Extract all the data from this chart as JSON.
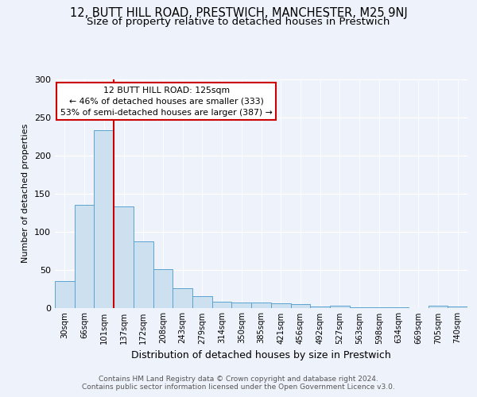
{
  "title": "12, BUTT HILL ROAD, PRESTWICH, MANCHESTER, M25 9NJ",
  "subtitle": "Size of property relative to detached houses in Prestwich",
  "xlabel": "Distribution of detached houses by size in Prestwich",
  "ylabel": "Number of detached properties",
  "categories": [
    "30sqm",
    "66sqm",
    "101sqm",
    "137sqm",
    "172sqm",
    "208sqm",
    "243sqm",
    "279sqm",
    "314sqm",
    "350sqm",
    "385sqm",
    "421sqm",
    "456sqm",
    "492sqm",
    "527sqm",
    "563sqm",
    "598sqm",
    "634sqm",
    "669sqm",
    "705sqm",
    "740sqm"
  ],
  "values": [
    35,
    135,
    233,
    133,
    87,
    51,
    26,
    15,
    8,
    7,
    7,
    6,
    5,
    2,
    3,
    1,
    1,
    1,
    0,
    3,
    2
  ],
  "bar_color": "#cce0f0",
  "bar_edge_color": "#5ba3d0",
  "vline_x": 2.5,
  "vline_color": "#cc0000",
  "annotation_text": "12 BUTT HILL ROAD: 125sqm\n← 46% of detached houses are smaller (333)\n53% of semi-detached houses are larger (387) →",
  "annotation_box_color": "#ffffff",
  "annotation_box_edge": "#cc0000",
  "ylim": [
    0,
    300
  ],
  "yticks": [
    0,
    50,
    100,
    150,
    200,
    250,
    300
  ],
  "footer": "Contains HM Land Registry data © Crown copyright and database right 2024.\nContains public sector information licensed under the Open Government Licence v3.0.",
  "background_color": "#eef2fa",
  "plot_background": "#eef2fa",
  "title_fontsize": 10.5,
  "subtitle_fontsize": 9.5
}
